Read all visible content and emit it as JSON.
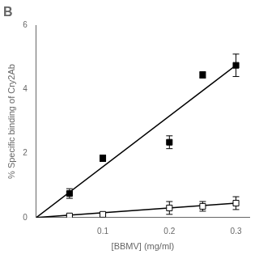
{
  "chart_data": {
    "type": "scatter",
    "title": "B",
    "xlabel": "[BBMV] (mg/ml)",
    "ylabel": "% Specific binding of Cry2Ab",
    "xlim": [
      0,
      0.32
    ],
    "ylim": [
      0,
      6
    ],
    "xticks": [
      0.1,
      0.2,
      0.3
    ],
    "yticks": [
      0,
      2,
      4,
      6
    ],
    "grid": false,
    "series": [
      {
        "type": "scatter",
        "marker": "square",
        "color": "#000000",
        "x": [
          0.05,
          0.1,
          0.2,
          0.25,
          0.3
        ],
        "values": [
          0.75,
          1.85,
          2.35,
          4.45,
          4.75
        ],
        "yerr": [
          0.15,
          0.1,
          0.2,
          0.1,
          0.35
        ]
      },
      {
        "type": "scatter",
        "marker": "open_square",
        "color": "#000000",
        "x": [
          0.05,
          0.1,
          0.2,
          0.25,
          0.3
        ],
        "values": [
          0.05,
          0.1,
          0.3,
          0.35,
          0.45
        ],
        "yerr": [
          0.05,
          0.05,
          0.2,
          0.15,
          0.2
        ]
      },
      {
        "type": "line",
        "color": "#000000",
        "x": [
          0,
          0.3
        ],
        "values": [
          0,
          4.75
        ]
      },
      {
        "type": "line",
        "color": "#000000",
        "x": [
          0,
          0.3
        ],
        "values": [
          0,
          0.45
        ]
      }
    ]
  }
}
